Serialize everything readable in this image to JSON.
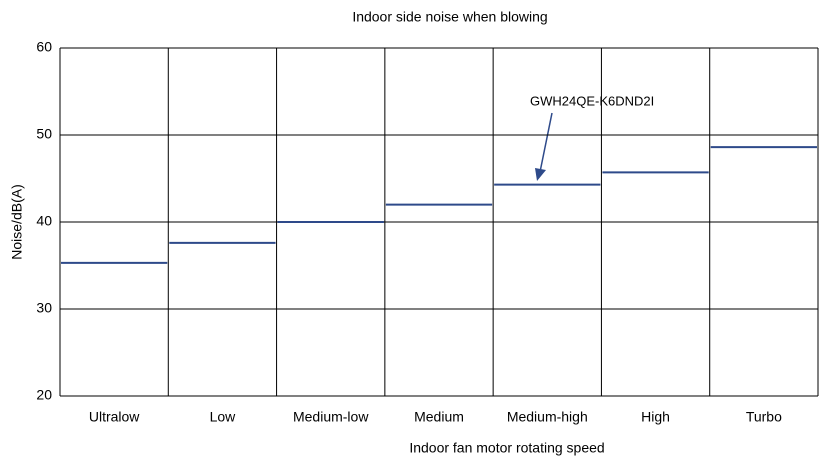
{
  "chart_data": {
    "type": "step",
    "title": "Indoor side noise when blowing",
    "xlabel": "Indoor fan motor rotating speed",
    "ylabel": "Noise/dB(A)",
    "categories": [
      "Ultralow",
      "Low",
      "Medium-low",
      "Medium",
      "Medium-high",
      "High",
      "Turbo"
    ],
    "series": [
      {
        "name": "GWH24QE-K6DND2I",
        "color": "#2e4a8a",
        "values": [
          35.3,
          37.6,
          40,
          42,
          44.3,
          45.7,
          48.6
        ]
      }
    ],
    "annotation": "GWH24QE-K6DND2I",
    "ylim": [
      20,
      60
    ],
    "yticks": [
      20,
      30,
      40,
      50,
      60
    ],
    "grid": true
  }
}
